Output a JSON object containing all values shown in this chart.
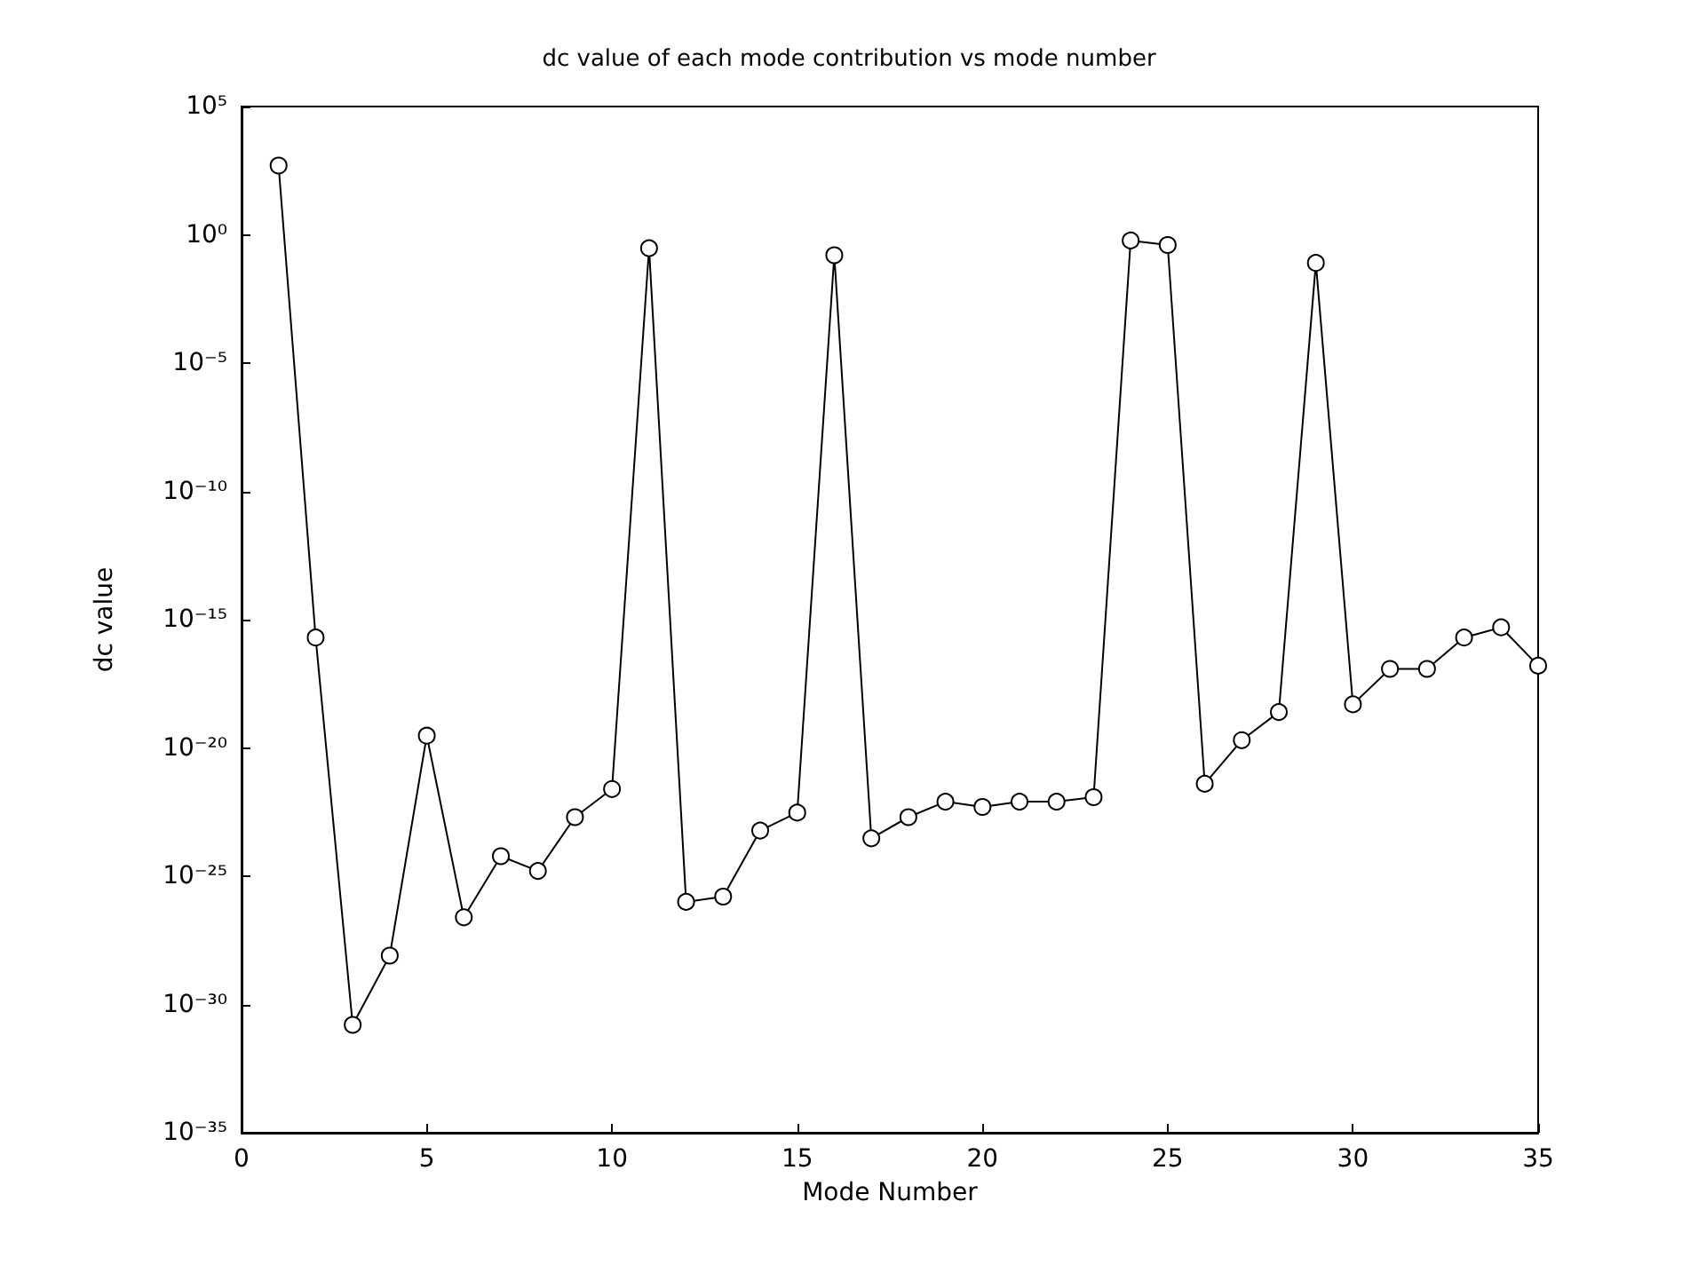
{
  "chart_data": {
    "type": "line",
    "title": "dc value of each mode contribution vs mode number",
    "xlabel": "Mode Number",
    "ylabel": "dc value",
    "x": [
      1,
      2,
      3,
      4,
      5,
      6,
      7,
      8,
      9,
      10,
      11,
      12,
      13,
      14,
      15,
      16,
      17,
      18,
      19,
      20,
      21,
      22,
      23,
      24,
      25,
      26,
      27,
      28,
      29,
      30,
      31,
      32,
      33,
      34,
      35
    ],
    "series": [
      {
        "color": "#000000",
        "values": [
          500.0,
          2e-16,
          1.6e-31,
          8e-29,
          3e-20,
          2.5e-27,
          6e-25,
          1.6e-25,
          2e-23,
          2.5e-22,
          0.3,
          1e-26,
          1.6e-26,
          6e-24,
          3e-23,
          0.16,
          3e-24,
          2e-23,
          8e-23,
          5e-23,
          8e-23,
          8e-23,
          1.2e-22,
          0.6,
          0.4,
          4e-22,
          2e-20,
          2.5e-19,
          0.08,
          5e-19,
          1.2e-17,
          1.2e-17,
          2e-16,
          5e-16,
          1.6e-17
        ]
      }
    ],
    "xlim": [
      0,
      35
    ],
    "xticks": [
      0,
      5,
      10,
      15,
      20,
      25,
      30,
      35
    ],
    "ylim": [
      1e-35,
      100000.0
    ],
    "yticks": [
      {
        "value": 1e-35,
        "label": "10⁻³⁵"
      },
      {
        "value": 1e-30,
        "label": "10⁻³⁰"
      },
      {
        "value": 1e-25,
        "label": "10⁻²⁵"
      },
      {
        "value": 1e-20,
        "label": "10⁻²⁰"
      },
      {
        "value": 1e-15,
        "label": "10⁻¹⁵"
      },
      {
        "value": 1e-10,
        "label": "10⁻¹⁰"
      },
      {
        "value": 1e-05,
        "label": "10⁻⁵"
      },
      {
        "value": 1,
        "label": "10⁰"
      },
      {
        "value": 100000.0,
        "label": "10⁵"
      }
    ],
    "log": "y",
    "grid": false,
    "marker": "circle",
    "line_style": "solid"
  }
}
